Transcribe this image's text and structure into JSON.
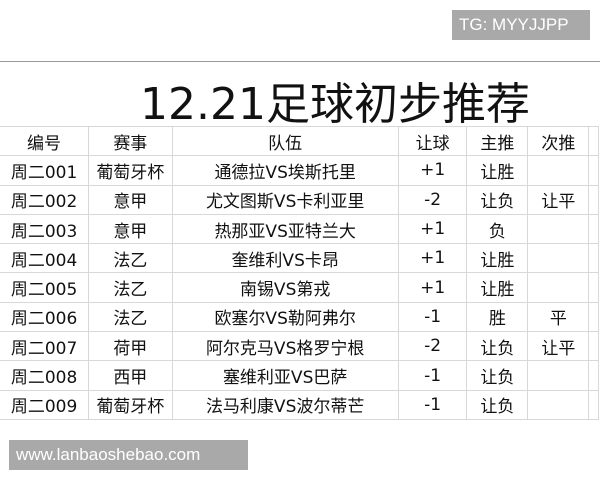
{
  "watermark_top": "TG: MYYJJPP",
  "watermark_bottom": "www.lanbaoshebao.com",
  "title": "12.21足球初步推荐",
  "headers": [
    "编号",
    "赛事",
    "队伍",
    "让球",
    "主推",
    "次推",
    ""
  ],
  "rows": [
    [
      "周二001",
      "葡萄牙杯",
      "通德拉VS埃斯托里",
      "+1",
      "让胜",
      ""
    ],
    [
      "周二002",
      "意甲",
      "尤文图斯VS卡利亚里",
      "-2",
      "让负",
      "让平"
    ],
    [
      "周二003",
      "意甲",
      "热那亚VS亚特兰大",
      "+1",
      "负",
      ""
    ],
    [
      "周二004",
      "法乙",
      "奎维利VS卡昂",
      "+1",
      "让胜",
      ""
    ],
    [
      "周二005",
      "法乙",
      "南锡VS第戎",
      "+1",
      "让胜",
      ""
    ],
    [
      "周二006",
      "法乙",
      "欧塞尔VS勒阿弗尔",
      "-1",
      "胜",
      "平"
    ],
    [
      "周二007",
      "荷甲",
      "阿尔克马VS格罗宁根",
      "-2",
      "让负",
      "让平"
    ],
    [
      "周二008",
      "西甲",
      "塞维利亚VS巴萨",
      "-1",
      "让负",
      ""
    ],
    [
      "周二009",
      "葡萄牙杯",
      "法马利康VS波尔蒂芒",
      "-1",
      "让负",
      ""
    ]
  ]
}
